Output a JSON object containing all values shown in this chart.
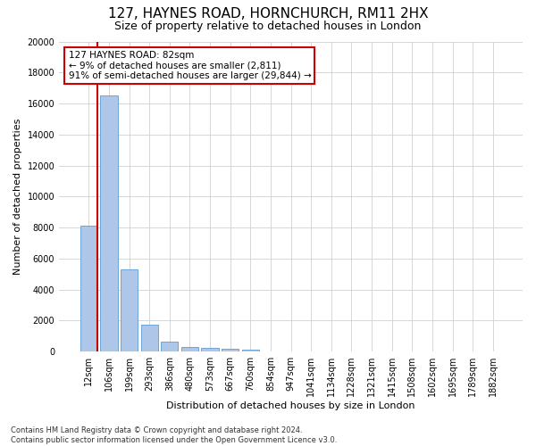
{
  "title": "127, HAYNES ROAD, HORNCHURCH, RM11 2HX",
  "subtitle": "Size of property relative to detached houses in London",
  "xlabel": "Distribution of detached houses by size in London",
  "ylabel": "Number of detached properties",
  "footnote": "Contains HM Land Registry data © Crown copyright and database right 2024.\nContains public sector information licensed under the Open Government Licence v3.0.",
  "bar_color": "#aec6e8",
  "bar_edge_color": "#5b9bd5",
  "grid_color": "#d0d0d0",
  "annotation_text": "127 HAYNES ROAD: 82sqm\n← 9% of detached houses are smaller (2,811)\n91% of semi-detached houses are larger (29,844) →",
  "annotation_box_color": "#ffffff",
  "annotation_border_color": "#cc0000",
  "vline_color": "#cc0000",
  "categories": [
    "12sqm",
    "106sqm",
    "199sqm",
    "293sqm",
    "386sqm",
    "480sqm",
    "573sqm",
    "667sqm",
    "760sqm",
    "854sqm",
    "947sqm",
    "1041sqm",
    "1134sqm",
    "1228sqm",
    "1321sqm",
    "1415sqm",
    "1508sqm",
    "1602sqm",
    "1695sqm",
    "1789sqm",
    "1882sqm"
  ],
  "values": [
    8100,
    16500,
    5300,
    1750,
    650,
    280,
    220,
    150,
    120,
    0,
    0,
    0,
    0,
    0,
    0,
    0,
    0,
    0,
    0,
    0,
    0
  ],
  "ylim": [
    0,
    20000
  ],
  "yticks": [
    0,
    2000,
    4000,
    6000,
    8000,
    10000,
    12000,
    14000,
    16000,
    18000,
    20000
  ],
  "bg_color": "#ffffff",
  "title_fontsize": 11,
  "subtitle_fontsize": 9,
  "xlabel_fontsize": 8,
  "ylabel_fontsize": 8,
  "tick_fontsize": 7,
  "annotation_fontsize": 7.5,
  "footnote_fontsize": 6,
  "vline_x_data": 0.425
}
